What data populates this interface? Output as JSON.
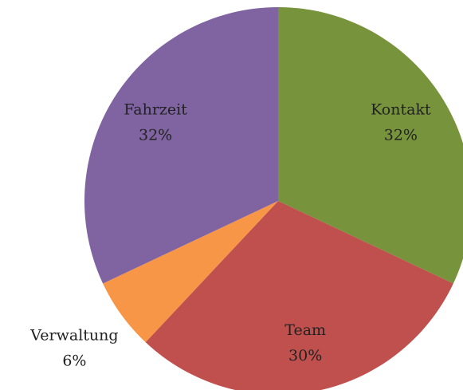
{
  "chart_data": {
    "type": "pie",
    "categories": [
      "Kontakt",
      "Team",
      "Verwaltung",
      "Fahrzeit"
    ],
    "values": [
      32,
      30,
      6,
      32
    ],
    "value_labels": [
      "32%",
      "30%",
      "6%",
      "32%"
    ],
    "colors": [
      "#77933c",
      "#c0504d",
      "#f79646",
      "#8064a2"
    ]
  }
}
